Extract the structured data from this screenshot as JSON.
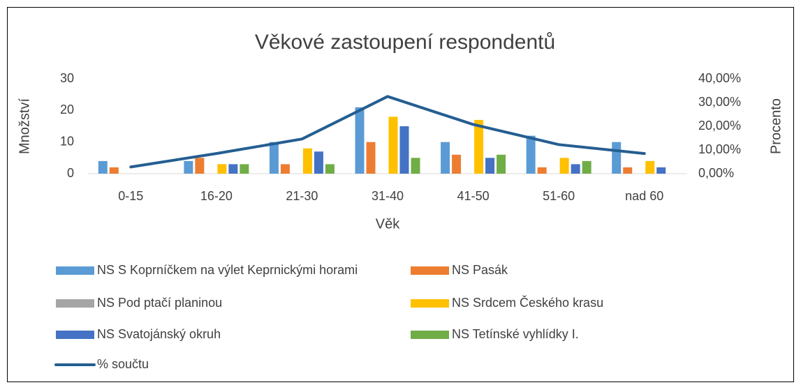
{
  "chart_data": {
    "type": "bar",
    "title": "Věkové zastoupení respondentů",
    "x_label": "Věk",
    "y_label": "Množství",
    "y2_label": "Procento",
    "categories": [
      "0-15",
      "16-20",
      "21-30",
      "31-40",
      "41-50",
      "51-60",
      "nad 60"
    ],
    "series": [
      {
        "name": "NS S Koprníčkem na výlet Keprnickými horami",
        "color": "#5b9bd5",
        "values": [
          4,
          4,
          10,
          21,
          10,
          12,
          10
        ]
      },
      {
        "name": "NS Pasák",
        "color": "#ed7d31",
        "values": [
          2,
          5,
          3,
          10,
          6,
          2,
          2
        ]
      },
      {
        "name": "NS Pod ptačí planinou",
        "color": "#a5a5a5",
        "values": [
          0,
          0,
          0,
          0,
          0,
          0,
          0
        ]
      },
      {
        "name": "NS Srdcem Českého krasu",
        "color": "#ffc000",
        "values": [
          0,
          3,
          8,
          18,
          17,
          5,
          4
        ]
      },
      {
        "name": "NS Svatojánský okruh",
        "color": "#4472c4",
        "values": [
          0,
          3,
          7,
          15,
          5,
          3,
          2
        ]
      },
      {
        "name": "NS Tetínské vyhlídky I.",
        "color": "#70ad47",
        "values": [
          0,
          3,
          3,
          5,
          6,
          4,
          0
        ]
      },
      {
        "name": "% součtu",
        "type": "line",
        "axis": "y2",
        "color": "#255e91",
        "values": [
          2.83,
          8.49,
          14.62,
          32.55,
          20.75,
          12.26,
          8.49
        ]
      }
    ],
    "ylim": [
      0,
      30
    ],
    "yticks": [
      0,
      10,
      20,
      30
    ],
    "y2lim": [
      0,
      40
    ],
    "y2ticks": [
      {
        "value": 0,
        "label": "0,00%"
      },
      {
        "value": 10,
        "label": "10,00%"
      },
      {
        "value": 20,
        "label": "20,00%"
      },
      {
        "value": 30,
        "label": "30,00%"
      },
      {
        "value": 40,
        "label": "40,00%"
      }
    ],
    "grid": false,
    "legend": "bottom"
  }
}
